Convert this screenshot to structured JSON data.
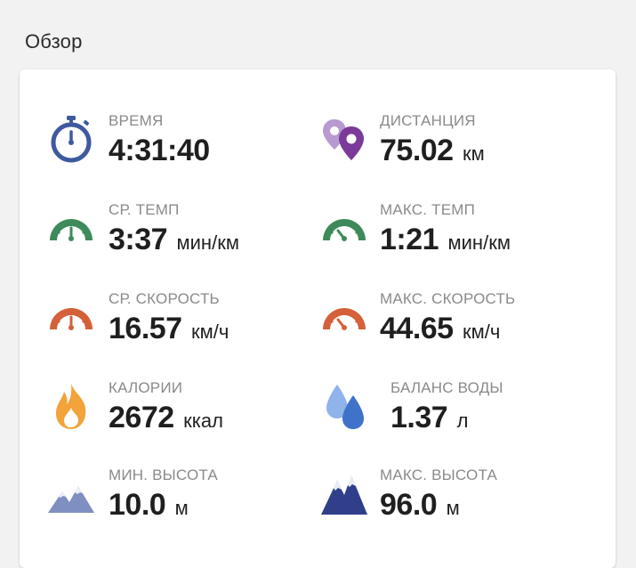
{
  "section": {
    "title": "Обзор"
  },
  "stats": {
    "time": {
      "label": "ВРЕМЯ",
      "value": "4:31:40",
      "unit": ""
    },
    "distance": {
      "label": "ДИСТАНЦИЯ",
      "value": "75.02",
      "unit": "км"
    },
    "avg_pace": {
      "label": "СР. ТЕМП",
      "value": "3:37",
      "unit": "мин/км"
    },
    "max_pace": {
      "label": "МАКС. ТЕМП",
      "value": "1:21",
      "unit": "мин/км"
    },
    "avg_speed": {
      "label": "СР. СКОРОСТЬ",
      "value": "16.57",
      "unit": "км/ч"
    },
    "max_speed": {
      "label": "МАКС. СКОРОСТЬ",
      "value": "44.65",
      "unit": "км/ч"
    },
    "calories": {
      "label": "КАЛОРИИ",
      "value": "2672",
      "unit": "ккал"
    },
    "water": {
      "label": "БАЛАНС ВОДЫ",
      "value": "1.37",
      "unit": "л"
    },
    "min_alt": {
      "label": "МИН. ВЫСОТА",
      "value": "10.0",
      "unit": "м"
    },
    "max_alt": {
      "label": "МАКС. ВЫСОТА",
      "value": "96.0",
      "unit": "м"
    }
  },
  "icons": {
    "time": "stopwatch-icon",
    "distance": "map-pins-icon",
    "avg_pace": "gauge-icon",
    "max_pace": "gauge-icon",
    "avg_speed": "gauge-icon",
    "max_speed": "gauge-icon",
    "calories": "flame-icon",
    "water": "water-drops-icon",
    "min_alt": "mountains-icon",
    "max_alt": "mountains-icon"
  },
  "colors": {
    "time": "#3e5a9e",
    "distance": "#7b3a9a",
    "pace": "#3f8a5a",
    "speed": "#d4613a",
    "calories": "#f2a33a",
    "water": "#3f73c9",
    "min_alt": "#7f8fc2",
    "max_alt": "#2f3f8a"
  }
}
